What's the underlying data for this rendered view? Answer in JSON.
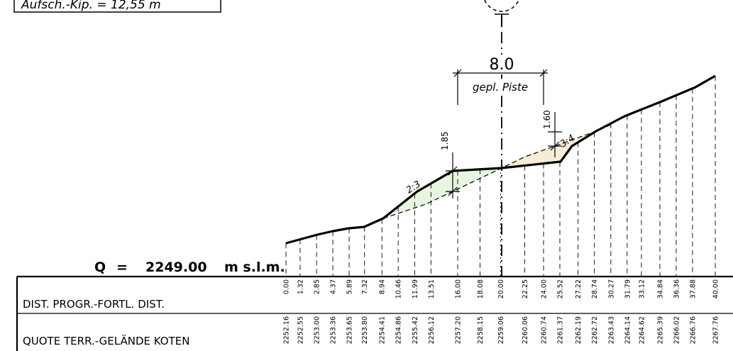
{
  "header_box": {
    "text": "Aufsch.-Kip. = 12,55 m"
  },
  "datum": {
    "q_label": "Q",
    "equals": "=",
    "elevation": "2249.00",
    "unit": "m s.l.m."
  },
  "rows": {
    "distance_label": "DIST. PROGR.-FORTL. DIST.",
    "elevation_label": "QUOTE TERR.-GELÄNDE KOTEN"
  },
  "stations": [
    {
      "dist": "0.00",
      "elev": "2252.16"
    },
    {
      "dist": "1.32",
      "elev": "2252.55"
    },
    {
      "dist": "2.85",
      "elev": "2253.00"
    },
    {
      "dist": "4.37",
      "elev": "2253.36"
    },
    {
      "dist": "5.89",
      "elev": "2253.65"
    },
    {
      "dist": "7.32",
      "elev": "2253.80"
    },
    {
      "dist": "8.94",
      "elev": "2254.41"
    },
    {
      "dist": "10.46",
      "elev": "2254.86"
    },
    {
      "dist": "11.99",
      "elev": "2255.42"
    },
    {
      "dist": "13.51",
      "elev": "2256.12"
    },
    {
      "dist": "16.00",
      "elev": "2257.20"
    },
    {
      "dist": "18.08",
      "elev": "2258.15"
    },
    {
      "dist": "20.00",
      "elev": "2259.06"
    },
    {
      "dist": "22.25",
      "elev": "2260.06"
    },
    {
      "dist": "24.00",
      "elev": "2260.74"
    },
    {
      "dist": "25.52",
      "elev": "2261.37"
    },
    {
      "dist": "27.22",
      "elev": "2262.19"
    },
    {
      "dist": "28.74",
      "elev": "2262.72"
    },
    {
      "dist": "30.27",
      "elev": "2263.43"
    },
    {
      "dist": "31.79",
      "elev": "2264.14"
    },
    {
      "dist": "33.12",
      "elev": "2264.62"
    },
    {
      "dist": "34.84",
      "elev": "2265.39"
    },
    {
      "dist": "36.36",
      "elev": "2266.02"
    },
    {
      "dist": "37.88",
      "elev": "2266.76"
    },
    {
      "dist": "40.00",
      "elev": "2267.76"
    }
  ],
  "annotations": {
    "piste_width": "8.0",
    "piste_label": "gepl. Piste",
    "cut_height": "1.60",
    "fill_height": "1.85",
    "slope_fill": "2:3",
    "slope_cut": "3:4"
  },
  "colors": {
    "line": "#000000",
    "fill_area": "#e8f5e0",
    "cut_area": "#f8ecd6",
    "background": "#ffffff"
  }
}
